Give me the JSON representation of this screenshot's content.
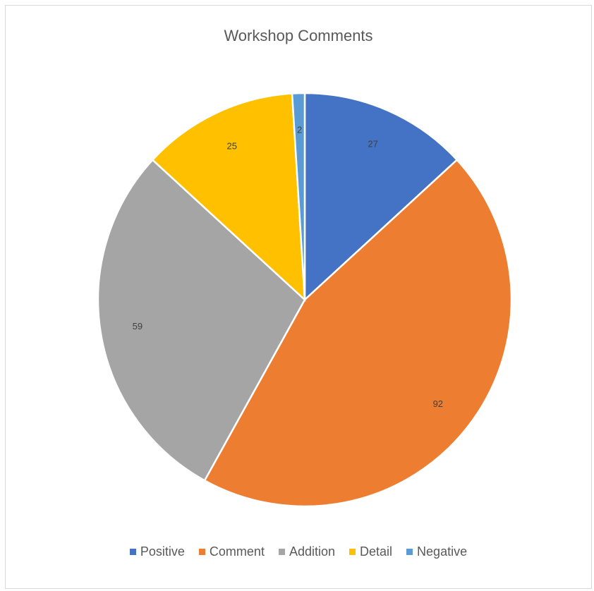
{
  "chart_data": {
    "type": "pie",
    "title": "Workshop Comments",
    "categories": [
      "Positive",
      "Comment",
      "Addition",
      "Detail",
      "Negative"
    ],
    "values": [
      27,
      92,
      59,
      25,
      2
    ],
    "colors": [
      "#4472C4",
      "#ED7D31",
      "#A5A5A5",
      "#FFC000",
      "#5B9BD5"
    ],
    "legend_position": "bottom",
    "start_angle": "top, clockwise"
  }
}
